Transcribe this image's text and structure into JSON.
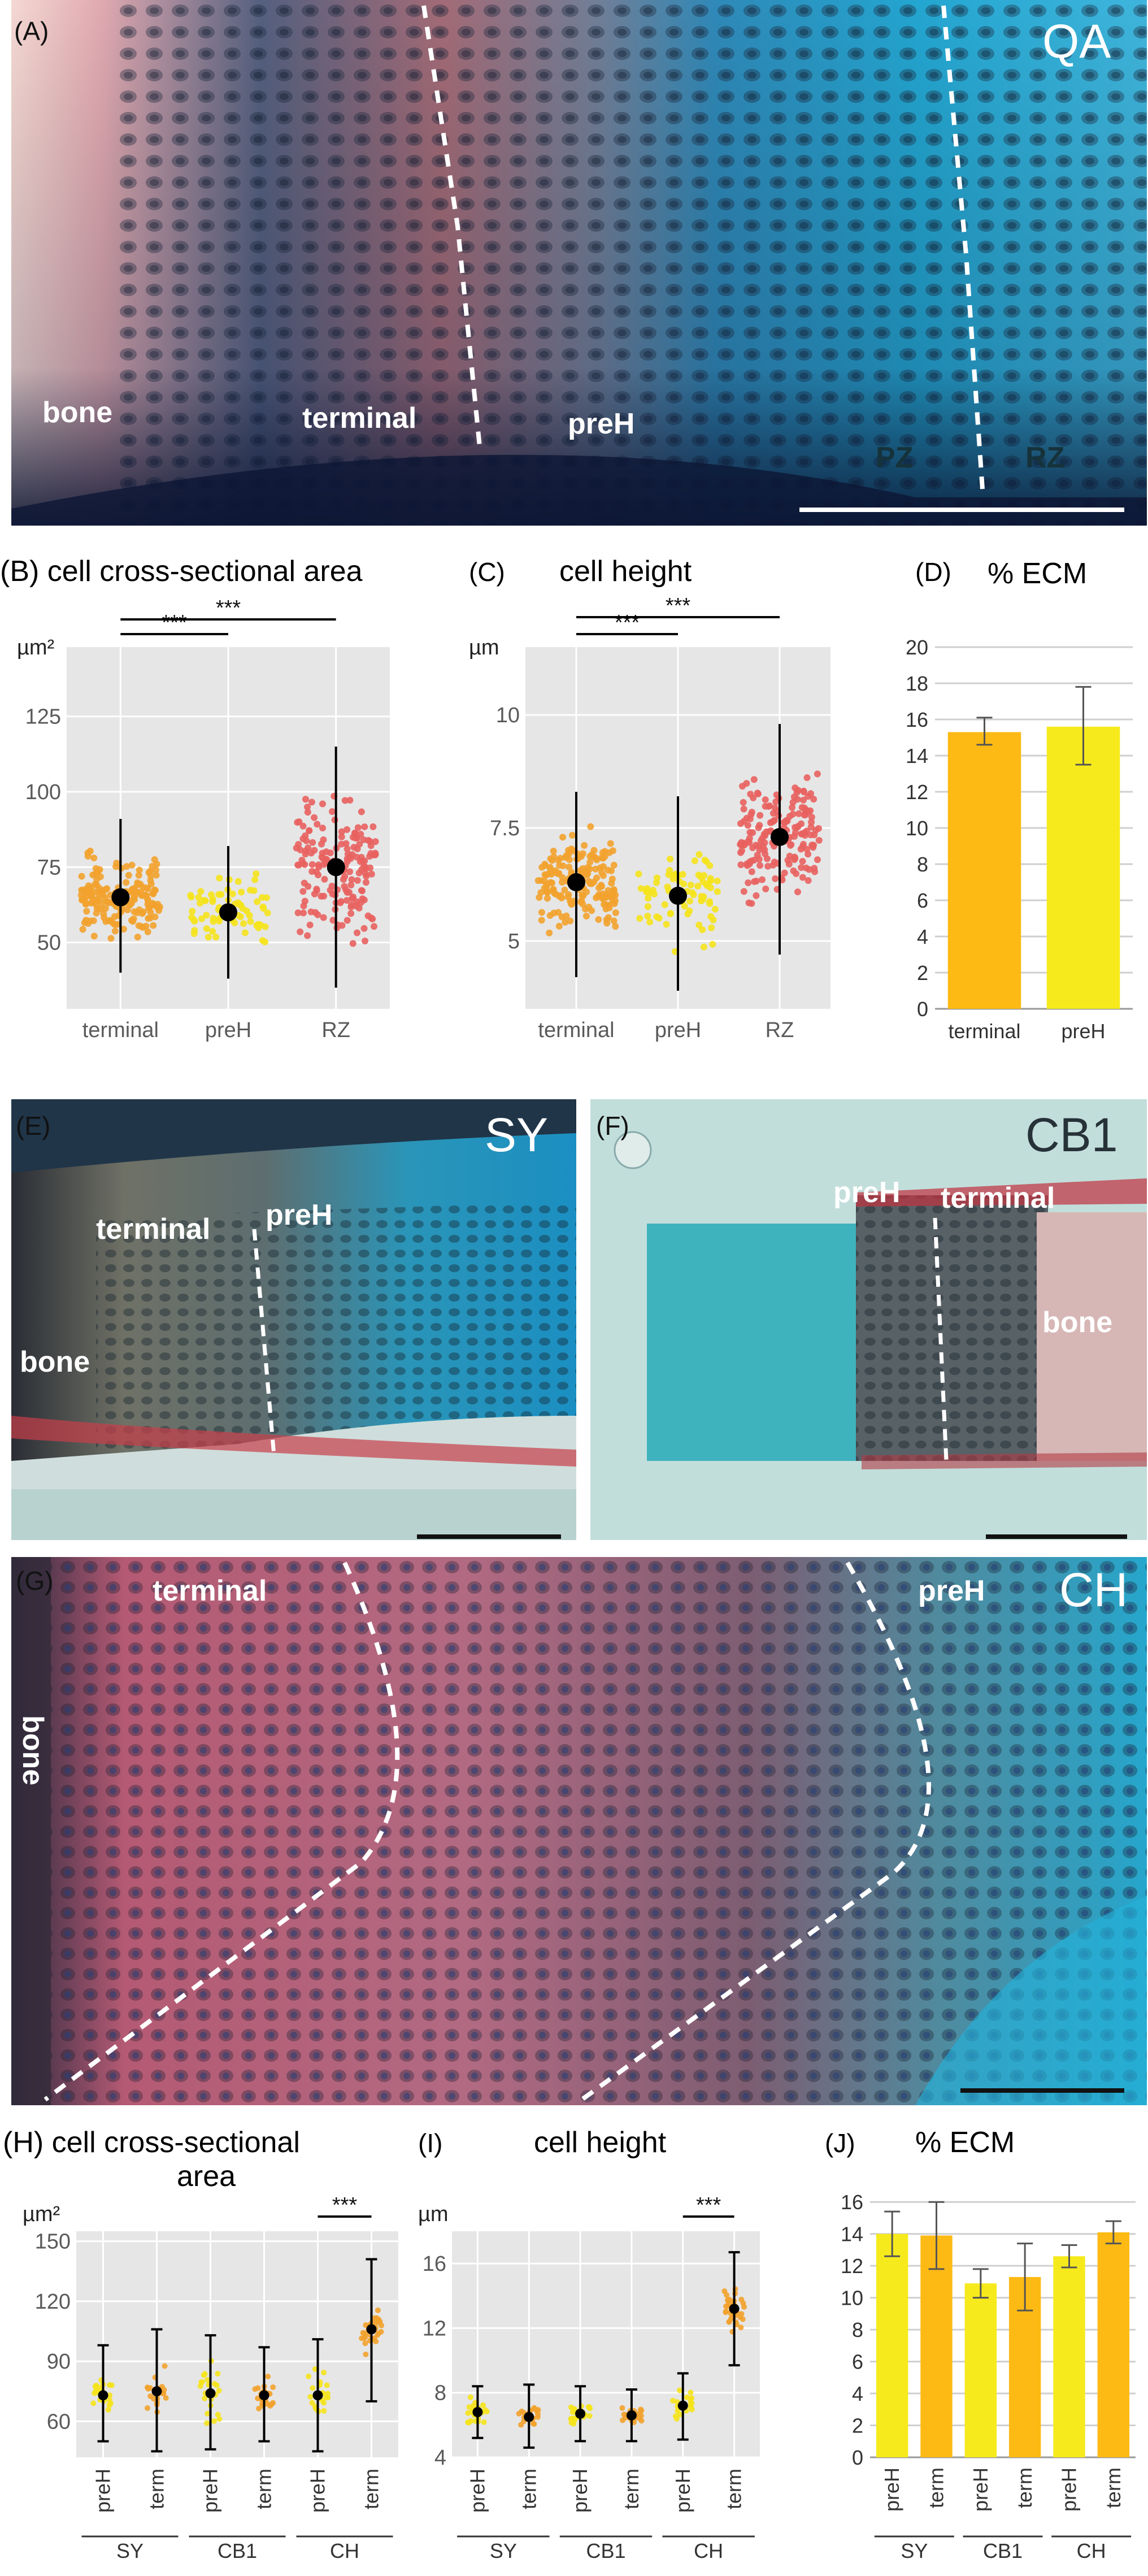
{
  "panels": {
    "A": {
      "letter": "(A)",
      "tag": "QA",
      "labels": {
        "bone": "bone",
        "terminal": "terminal",
        "preH": "preH",
        "PZ": "PZ",
        "RZ": "RZ"
      }
    },
    "E": {
      "letter": "(E)",
      "tag": "SY",
      "labels": {
        "terminal": "terminal",
        "preH": "preH",
        "bone": "bone"
      }
    },
    "F": {
      "letter": "(F)",
      "tag": "CB1",
      "labels": {
        "preH": "preH",
        "terminal": "terminal",
        "bone": "bone"
      }
    },
    "G": {
      "letter": "(G)",
      "tag": "CH",
      "labels": {
        "terminal": "terminal",
        "preH": "preH",
        "bone": "bone"
      }
    }
  },
  "colors": {
    "terminal_dot": "#f2a22e",
    "preH_dot": "#f5e31c",
    "RZ_dot": "#e8625f",
    "bar_terminal": "#fdba14",
    "bar_preH": "#f6ea1c",
    "plot_bg": "#e6e6e6",
    "grid": "#ffffff"
  },
  "chart_data": [
    {
      "id": "B",
      "letter": "(B)",
      "type": "scatter",
      "title": "cell cross-sectional area",
      "ylabel": "µm²",
      "categories": [
        "terminal",
        "preH",
        "RZ"
      ],
      "yticks": [
        50,
        75,
        100,
        125
      ],
      "ylim": [
        28,
        148
      ],
      "mean": [
        65,
        60,
        75
      ],
      "error_low": [
        40,
        38,
        35
      ],
      "error_high": [
        91,
        82,
        115
      ],
      "point_counts": [
        180,
        75,
        180
      ],
      "spread": [
        [
          38,
          106
        ],
        [
          38,
          90
        ],
        [
          30,
          145
        ]
      ],
      "significance": [
        {
          "from": 0,
          "to": 1,
          "label": "***"
        },
        {
          "from": 0,
          "to": 2,
          "label": "***"
        }
      ]
    },
    {
      "id": "C",
      "letter": "(C)",
      "type": "scatter",
      "title": "cell height",
      "ylabel": "µm",
      "categories": [
        "terminal",
        "preH",
        "RZ"
      ],
      "yticks": [
        5,
        7.5,
        10
      ],
      "ylim": [
        3.5,
        11.5
      ],
      "mean": [
        6.3,
        6.0,
        7.3
      ],
      "error_low": [
        4.2,
        3.9,
        4.7
      ],
      "error_high": [
        8.3,
        8.2,
        9.8
      ],
      "point_counts": [
        180,
        75,
        180
      ],
      "spread": [
        [
          3.6,
          8.8
        ],
        [
          3.8,
          8.9
        ],
        [
          4.1,
          11.2
        ]
      ],
      "significance": [
        {
          "from": 0,
          "to": 1,
          "label": "***"
        },
        {
          "from": 0,
          "to": 2,
          "label": "***"
        }
      ]
    },
    {
      "id": "D",
      "letter": "(D)",
      "type": "bar",
      "title": "% ECM",
      "categories": [
        "terminal",
        "preH"
      ],
      "values": [
        15.3,
        15.6
      ],
      "error_low": [
        14.6,
        13.5
      ],
      "error_high": [
        16.1,
        17.8
      ],
      "yticks": [
        0,
        2,
        4,
        6,
        8,
        10,
        12,
        14,
        16,
        18,
        20
      ],
      "ylim": [
        0,
        20
      ]
    },
    {
      "id": "H",
      "letter": "(H)",
      "type": "scatter",
      "title": "cell cross-sectional",
      "title2": "area",
      "ylabel": "µm²",
      "categories": [
        "preH",
        "term",
        "preH",
        "term",
        "preH",
        "term"
      ],
      "groups": [
        "SY",
        "CB1",
        "CH"
      ],
      "yticks": [
        60,
        90,
        120,
        150
      ],
      "ylim": [
        42,
        155
      ],
      "mean": [
        73,
        75,
        74,
        73,
        73,
        106
      ],
      "error_low": [
        50,
        45,
        46,
        50,
        45,
        70
      ],
      "error_high": [
        98,
        106,
        103,
        97,
        101,
        141
      ],
      "point_counts": [
        22,
        22,
        22,
        22,
        22,
        34
      ],
      "spread": [
        [
          52,
          102
        ],
        [
          48,
          104
        ],
        [
          50,
          120
        ],
        [
          52,
          95
        ],
        [
          50,
          108
        ],
        [
          75,
          146
        ]
      ],
      "significance": [
        {
          "from": 4,
          "to": 5,
          "label": "***"
        }
      ]
    },
    {
      "id": "I",
      "letter": "(I)",
      "type": "scatter",
      "title": "cell height",
      "ylabel": "µm",
      "categories": [
        "preH",
        "term",
        "preH",
        "term",
        "preH",
        "term"
      ],
      "groups": [
        "SY",
        "CB1",
        "CH"
      ],
      "yticks": [
        4,
        8,
        12,
        16
      ],
      "ylim": [
        4,
        18
      ],
      "mean": [
        6.8,
        6.5,
        6.7,
        6.6,
        7.2,
        13.2
      ],
      "error_low": [
        5.2,
        4.6,
        5.0,
        5.0,
        5.1,
        9.7
      ],
      "error_high": [
        8.4,
        8.5,
        8.4,
        8.2,
        9.2,
        16.7
      ],
      "point_counts": [
        22,
        22,
        22,
        22,
        22,
        34
      ],
      "spread": [
        [
          5.5,
          9.3
        ],
        [
          4.8,
          8.7
        ],
        [
          5.2,
          8.6
        ],
        [
          5.2,
          8.4
        ],
        [
          5.0,
          9.0
        ],
        [
          10.0,
          17.0
        ]
      ],
      "significance": [
        {
          "from": 4,
          "to": 5,
          "label": "***"
        }
      ]
    },
    {
      "id": "J",
      "letter": "(J)",
      "type": "bar",
      "title": "% ECM",
      "categories": [
        "preH",
        "term",
        "preH",
        "term",
        "preH",
        "term"
      ],
      "groups": [
        "SY",
        "CB1",
        "CH"
      ],
      "values": [
        14.0,
        13.9,
        10.9,
        11.3,
        12.6,
        14.1
      ],
      "error_low": [
        12.6,
        11.8,
        10.0,
        9.2,
        11.9,
        13.4
      ],
      "error_high": [
        15.4,
        16.0,
        11.8,
        13.4,
        13.3,
        14.8
      ],
      "yticks": [
        0,
        2,
        4,
        6,
        8,
        10,
        12,
        14,
        16
      ],
      "ylim": [
        0,
        17
      ]
    }
  ]
}
